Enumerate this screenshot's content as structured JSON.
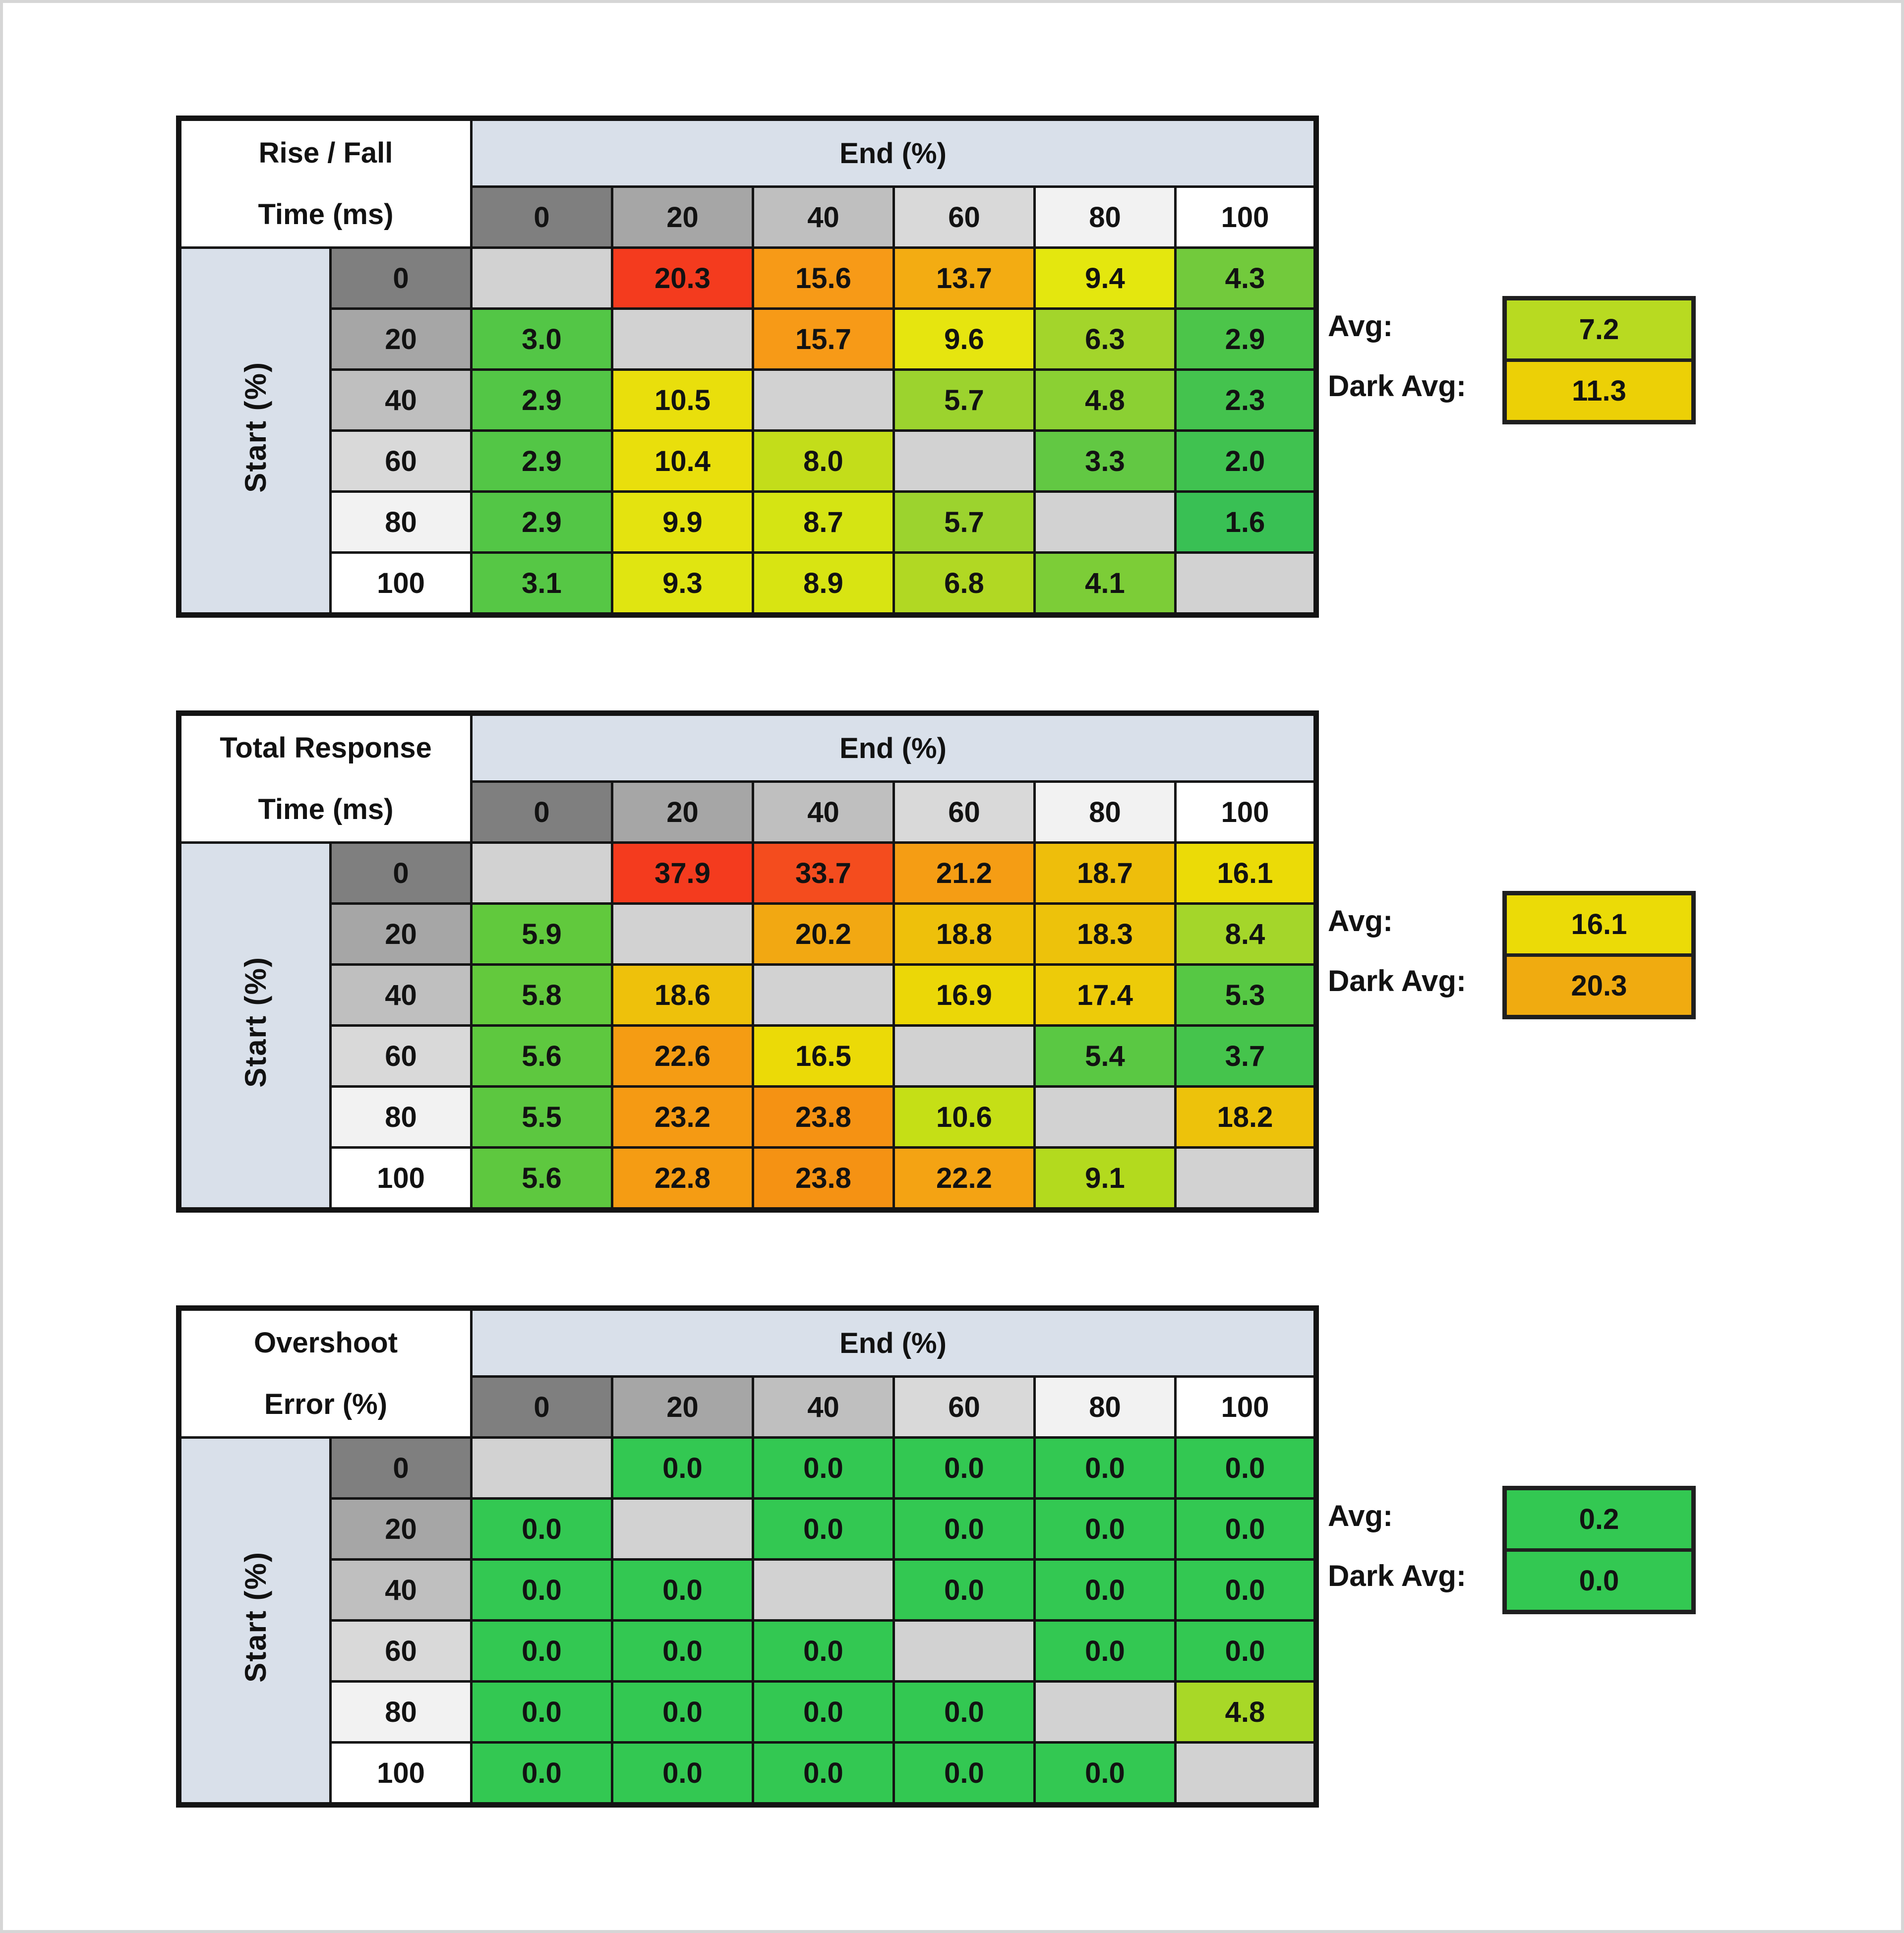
{
  "colors": {
    "header_shades": [
      "#7f7f7f",
      "#a6a6a6",
      "#bfbfbf",
      "#d9d9d9",
      "#f2f2f2",
      "#ffffff"
    ],
    "axis_band": "#d9e0ea",
    "diagonal_cell": "#d2d2d2",
    "grid_line": "#141414",
    "page_edge": "#d6d6d6"
  },
  "tables": [
    {
      "name": "rise-fall-time",
      "title_lines": [
        "Rise / Fall",
        "Time (ms)"
      ],
      "end_axis_label": "End (%)",
      "start_axis_label": "Start (%)",
      "col_headers": [
        "0",
        "20",
        "40",
        "60",
        "80",
        "100"
      ],
      "row_headers": [
        "0",
        "20",
        "40",
        "60",
        "80",
        "100"
      ],
      "values": [
        [
          "",
          "20.3",
          "15.6",
          "13.7",
          "9.4",
          "4.3"
        ],
        [
          "3.0",
          "",
          "15.7",
          "9.6",
          "6.3",
          "2.9"
        ],
        [
          "2.9",
          "10.5",
          "",
          "5.7",
          "4.8",
          "2.3"
        ],
        [
          "2.9",
          "10.4",
          "8.0",
          "",
          "3.3",
          "2.0"
        ],
        [
          "2.9",
          "9.9",
          "8.7",
          "5.7",
          "",
          "1.6"
        ],
        [
          "3.1",
          "9.3",
          "8.9",
          "6.8",
          "4.1",
          ""
        ]
      ],
      "cell_colors": [
        [
          "",
          "#f43b1e",
          "#f79a17",
          "#f3ac12",
          "#e4e70e",
          "#72ca3c"
        ],
        [
          "#53c646",
          "",
          "#f79a17",
          "#e6e50f",
          "#a3d52b",
          "#4cc54a"
        ],
        [
          "#53c646",
          "#e9df0c",
          "",
          "#9cd32e",
          "#8bd033",
          "#44c34e"
        ],
        [
          "#53c646",
          "#e9df0c",
          "#c3dd1a",
          "",
          "#62c843",
          "#40c250"
        ],
        [
          "#53c646",
          "#e4e30f",
          "#d5e413",
          "#9cd32e",
          "",
          "#39c054"
        ],
        [
          "#56c745",
          "#e0e511",
          "#d8e412",
          "#b1d823",
          "#7ccd37",
          ""
        ]
      ],
      "avg_label": "Avg:",
      "dark_avg_label": "Dark Avg:",
      "avg_value": "7.2",
      "avg_color": "#b8da21",
      "dark_avg_value": "11.3",
      "dark_avg_color": "#ecd006"
    },
    {
      "name": "total-response-time",
      "title_lines": [
        "Total Response",
        "Time (ms)"
      ],
      "end_axis_label": "End (%)",
      "start_axis_label": "Start (%)",
      "col_headers": [
        "0",
        "20",
        "40",
        "60",
        "80",
        "100"
      ],
      "row_headers": [
        "0",
        "20",
        "40",
        "60",
        "80",
        "100"
      ],
      "values": [
        [
          "",
          "37.9",
          "33.7",
          "21.2",
          "18.7",
          "16.1"
        ],
        [
          "5.9",
          "",
          "20.2",
          "18.8",
          "18.3",
          "8.4"
        ],
        [
          "5.8",
          "18.6",
          "",
          "16.9",
          "17.4",
          "5.3"
        ],
        [
          "5.6",
          "22.6",
          "16.5",
          "",
          "5.4",
          "3.7"
        ],
        [
          "5.5",
          "23.2",
          "23.8",
          "10.6",
          "",
          "18.2"
        ],
        [
          "5.6",
          "22.8",
          "23.8",
          "22.2",
          "9.1",
          ""
        ]
      ],
      "cell_colors": [
        [
          "",
          "#f43b1e",
          "#f44c1e",
          "#f59d14",
          "#eebe0b",
          "#ebdb07"
        ],
        [
          "#61c93d",
          "",
          "#f2a812",
          "#eec00b",
          "#edc20b",
          "#a4d62a"
        ],
        [
          "#63c93d",
          "#eec10b",
          "",
          "#ebd707",
          "#edcb09",
          "#56c844"
        ],
        [
          "#5ec83f",
          "#f59c13",
          "#ebda07",
          "",
          "#5ac843",
          "#45c44c"
        ],
        [
          "#5cc740",
          "#f59a13",
          "#f59213",
          "#c5df16",
          "",
          "#edc20b"
        ],
        [
          "#5ec83f",
          "#f59c13",
          "#f59213",
          "#f4a313",
          "#b3da1e",
          ""
        ]
      ],
      "avg_label": "Avg:",
      "dark_avg_label": "Dark Avg:",
      "avg_value": "16.1",
      "avg_color": "#ebdb07",
      "dark_avg_value": "20.3",
      "dark_avg_color": "#f0ab10"
    },
    {
      "name": "overshoot-error",
      "title_lines": [
        "Overshoot",
        "Error (%)"
      ],
      "end_axis_label": "End (%)",
      "start_axis_label": "Start (%)",
      "col_headers": [
        "0",
        "20",
        "40",
        "60",
        "80",
        "100"
      ],
      "row_headers": [
        "0",
        "20",
        "40",
        "60",
        "80",
        "100"
      ],
      "values": [
        [
          "",
          "0.0",
          "0.0",
          "0.0",
          "0.0",
          "0.0"
        ],
        [
          "0.0",
          "",
          "0.0",
          "0.0",
          "0.0",
          "0.0"
        ],
        [
          "0.0",
          "0.0",
          "",
          "0.0",
          "0.0",
          "0.0"
        ],
        [
          "0.0",
          "0.0",
          "0.0",
          "",
          "0.0",
          "0.0"
        ],
        [
          "0.0",
          "0.0",
          "0.0",
          "0.0",
          "",
          "4.8"
        ],
        [
          "0.0",
          "0.0",
          "0.0",
          "0.0",
          "0.0",
          ""
        ]
      ],
      "cell_colors": [
        [
          "",
          "#33c852",
          "#33c852",
          "#33c852",
          "#33c852",
          "#33c852"
        ],
        [
          "#33c852",
          "",
          "#33c852",
          "#33c852",
          "#33c852",
          "#33c852"
        ],
        [
          "#33c852",
          "#33c852",
          "",
          "#33c852",
          "#33c852",
          "#33c852"
        ],
        [
          "#33c852",
          "#33c852",
          "#33c852",
          "",
          "#33c852",
          "#33c852"
        ],
        [
          "#33c852",
          "#33c852",
          "#33c852",
          "#33c852",
          "",
          "#a8d827"
        ],
        [
          "#33c852",
          "#33c852",
          "#33c852",
          "#33c852",
          "#33c852",
          ""
        ]
      ],
      "avg_label": "Avg:",
      "dark_avg_label": "Dark Avg:",
      "avg_value": "0.2",
      "avg_color": "#33c852",
      "dark_avg_value": "0.0",
      "dark_avg_color": "#33c852"
    }
  ],
  "chart_data": [
    {
      "type": "heatmap",
      "title": "Rise / Fall Time (ms)",
      "xlabel": "End (%)",
      "ylabel": "Start (%)",
      "x": [
        0,
        20,
        40,
        60,
        80,
        100
      ],
      "y": [
        0,
        20,
        40,
        60,
        80,
        100
      ],
      "values": [
        [
          null,
          20.3,
          15.6,
          13.7,
          9.4,
          4.3
        ],
        [
          3.0,
          null,
          15.7,
          9.6,
          6.3,
          2.9
        ],
        [
          2.9,
          10.5,
          null,
          5.7,
          4.8,
          2.3
        ],
        [
          2.9,
          10.4,
          8.0,
          null,
          3.3,
          2.0
        ],
        [
          2.9,
          9.9,
          8.7,
          5.7,
          null,
          1.6
        ],
        [
          3.1,
          9.3,
          8.9,
          6.8,
          4.1,
          null
        ]
      ],
      "avg": 7.2,
      "dark_avg": 11.3,
      "color_scale": "green-low to red-high, gray diagonal"
    },
    {
      "type": "heatmap",
      "title": "Total Response Time (ms)",
      "xlabel": "End (%)",
      "ylabel": "Start (%)",
      "x": [
        0,
        20,
        40,
        60,
        80,
        100
      ],
      "y": [
        0,
        20,
        40,
        60,
        80,
        100
      ],
      "values": [
        [
          null,
          37.9,
          33.7,
          21.2,
          18.7,
          16.1
        ],
        [
          5.9,
          null,
          20.2,
          18.8,
          18.3,
          8.4
        ],
        [
          5.8,
          18.6,
          null,
          16.9,
          17.4,
          5.3
        ],
        [
          5.6,
          22.6,
          16.5,
          null,
          5.4,
          3.7
        ],
        [
          5.5,
          23.2,
          23.8,
          10.6,
          null,
          18.2
        ],
        [
          5.6,
          22.8,
          23.8,
          22.2,
          9.1,
          null
        ]
      ],
      "avg": 16.1,
      "dark_avg": 20.3,
      "color_scale": "green-low to red-high, gray diagonal"
    },
    {
      "type": "heatmap",
      "title": "Overshoot Error (%)",
      "xlabel": "End (%)",
      "ylabel": "Start (%)",
      "x": [
        0,
        20,
        40,
        60,
        80,
        100
      ],
      "y": [
        0,
        20,
        40,
        60,
        80,
        100
      ],
      "values": [
        [
          null,
          0.0,
          0.0,
          0.0,
          0.0,
          0.0
        ],
        [
          0.0,
          null,
          0.0,
          0.0,
          0.0,
          0.0
        ],
        [
          0.0,
          0.0,
          null,
          0.0,
          0.0,
          0.0
        ],
        [
          0.0,
          0.0,
          0.0,
          null,
          0.0,
          0.0
        ],
        [
          0.0,
          0.0,
          0.0,
          0.0,
          null,
          4.8
        ],
        [
          0.0,
          0.0,
          0.0,
          0.0,
          0.0,
          null
        ]
      ],
      "avg": 0.2,
      "dark_avg": 0.0,
      "color_scale": "green-low to red-high, gray diagonal"
    }
  ]
}
